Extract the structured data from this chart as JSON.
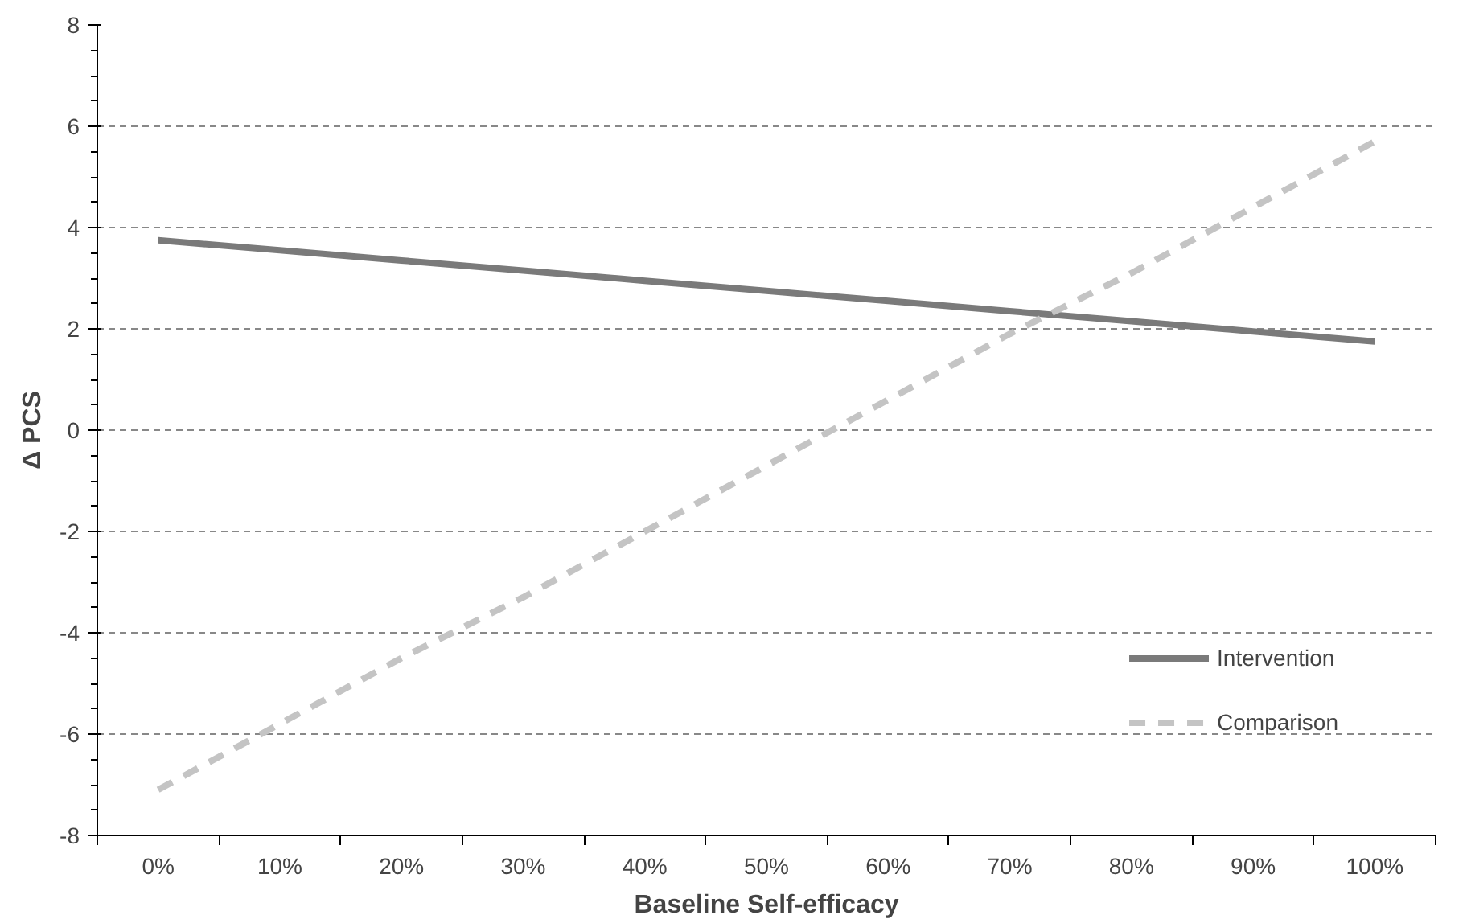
{
  "chart_data": {
    "type": "line",
    "xlabel": "Baseline Self-efficacy",
    "ylabel": "Δ PCS",
    "categories": [
      "0%",
      "10%",
      "20%",
      "30%",
      "40%",
      "50%",
      "60%",
      "70%",
      "80%",
      "90%",
      "100%"
    ],
    "series": [
      {
        "name": "Intervention",
        "color": "#7a7a7a",
        "line_style": "solid",
        "values": [
          3.75,
          3.55,
          3.35,
          3.15,
          2.95,
          2.75,
          2.55,
          2.35,
          2.15,
          1.95,
          1.75
        ]
      },
      {
        "name": "Comparison",
        "color": "#c4c4c4",
        "line_style": "dashed",
        "values": [
          -7.1,
          -5.8,
          -4.5,
          -3.3,
          -2.0,
          -0.7,
          0.6,
          1.9,
          3.1,
          4.4,
          5.7
        ]
      }
    ],
    "ylim": [
      -8,
      8
    ],
    "yticks": [
      -8,
      -6,
      -4,
      -2,
      0,
      2,
      4,
      6,
      8
    ],
    "grid": "y",
    "legend": "bottom right",
    "marker": "none"
  }
}
